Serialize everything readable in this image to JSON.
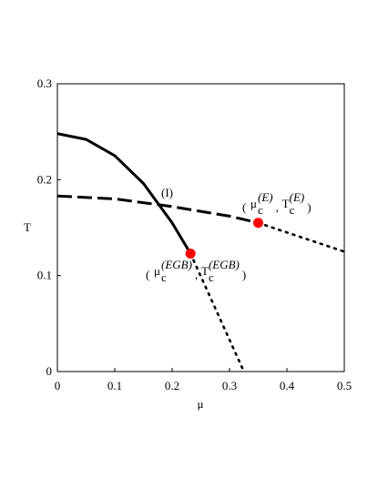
{
  "chart_data": {
    "type": "line",
    "x_label": "μ",
    "y_label": "T",
    "xlim": [
      0,
      0.5
    ],
    "ylim": [
      0,
      0.3
    ],
    "xticks": [
      0,
      0.1,
      0.2,
      0.3,
      0.4,
      0.5
    ],
    "yticks": [
      0,
      0.1,
      0.2,
      0.3
    ],
    "series": [
      {
        "color": "#000000",
        "style": "solid",
        "x": [
          0,
          0.05,
          0.1,
          0.15,
          0.2,
          0.232
        ],
        "values": [
          0.248,
          0.242,
          0.225,
          0.196,
          0.155,
          0.123
        ]
      },
      {
        "color": "#000000",
        "style": "dotted",
        "x": [
          0.232,
          0.325
        ],
        "values": [
          0.123,
          0
        ]
      },
      {
        "color": "#000000",
        "style": "dashed",
        "x": [
          0,
          0.1,
          0.2,
          0.3,
          0.35
        ],
        "values": [
          0.183,
          0.18,
          0.172,
          0.162,
          0.155
        ]
      },
      {
        "color": "#000000",
        "style": "dotted",
        "x": [
          0.35,
          0.5
        ],
        "values": [
          0.155,
          0.125
        ]
      },
      {
        "color": "#ff0000",
        "style": "marker",
        "x": [
          0.232,
          0.35
        ],
        "values": [
          0.123,
          0.155
        ]
      }
    ],
    "annotations": [
      {
        "text": "(I)"
      },
      {
        "open": "(",
        "terms": [
          {
            "base": "μ",
            "sub": "c",
            "sup": "(E)"
          },
          {
            "base": "T",
            "sub": "c",
            "sup": "(E)"
          }
        ],
        "separator": ",",
        "close": ")"
      },
      {
        "open": "(",
        "terms": [
          {
            "base": "μ",
            "sub": "c",
            "sup": "(EGB)"
          },
          {
            "base": "T",
            "sub": "c",
            "sup": "(EGB)"
          }
        ],
        "separator": ",",
        "close": ")"
      }
    ]
  }
}
